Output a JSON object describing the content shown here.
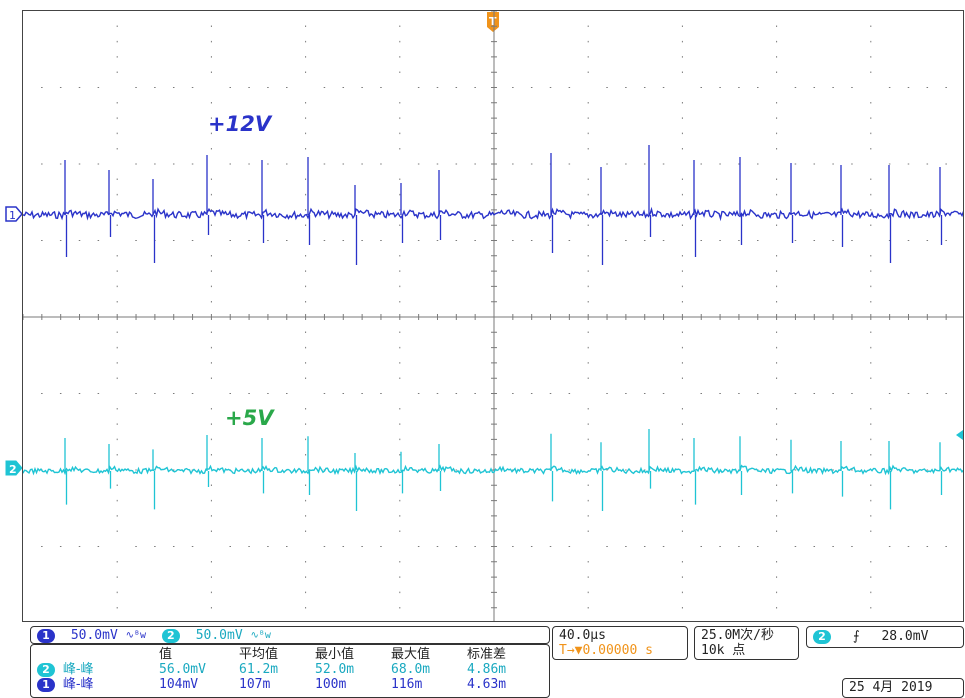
{
  "trace_labels": {
    "ch1": "+12V",
    "ch2": "+5V"
  },
  "markers": {
    "ch1": "1",
    "ch2": "2",
    "trigger": "T"
  },
  "colors": {
    "ch1": "#2a33c9",
    "ch2": "#1fc4d4",
    "ch2_label": "#2aa84a",
    "trigger": "#f0931a",
    "grid": "#7a7a7a"
  },
  "scale": {
    "ch1_badge": "1",
    "ch1_value": "50.0mV",
    "ch2_badge": "2",
    "ch2_value": "50.0mV"
  },
  "measurements": {
    "headers": [
      "值",
      "平均值",
      "最小值",
      "最大值",
      "标准差"
    ],
    "rows": [
      {
        "badge": "2",
        "name": "峰-峰",
        "values": [
          "56.0mV",
          "61.2m",
          "52.0m",
          "68.0m",
          "4.86m"
        ]
      },
      {
        "badge": "1",
        "name": "峰-峰",
        "values": [
          "104mV",
          "107m",
          "100m",
          "116m",
          "4.63m"
        ]
      }
    ]
  },
  "timebase": {
    "value": "40.0µs",
    "position_prefix": "T→▼",
    "position": "0.00000 s"
  },
  "acquisition": {
    "rate": "25.0M次/秒",
    "points": "10k 点"
  },
  "trigger": {
    "badge": "2",
    "slope": "⨍",
    "level": "28.0mV"
  },
  "date": {
    "text": "25 4月 2019"
  }
}
